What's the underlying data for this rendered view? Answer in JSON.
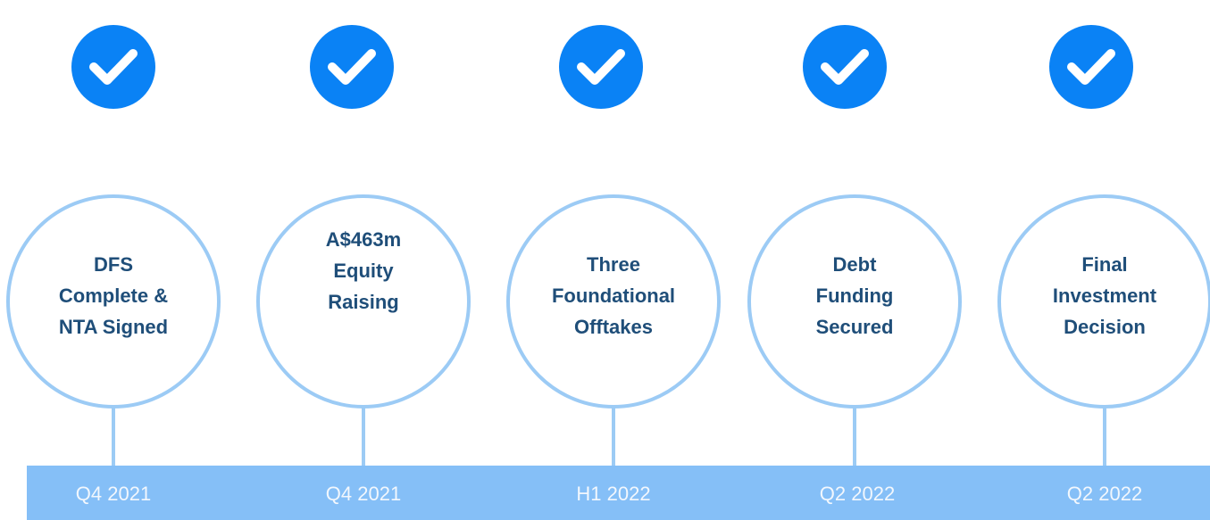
{
  "milestones": [
    {
      "lines": [
        "DFS",
        "Complete &",
        "NTA Signed"
      ],
      "date": "Q4 2021"
    },
    {
      "lines": [
        "A$463m",
        "Equity",
        "Raising"
      ],
      "date": "Q4 2021"
    },
    {
      "lines": [
        "Three",
        "Foundational",
        "Offtakes"
      ],
      "date": "H1 2022"
    },
    {
      "lines": [
        "Debt",
        "Funding",
        "Secured"
      ],
      "date": "Q2 2022"
    },
    {
      "lines": [
        "Final",
        "Investment",
        "Decision"
      ],
      "date": "Q2 2022"
    }
  ]
}
